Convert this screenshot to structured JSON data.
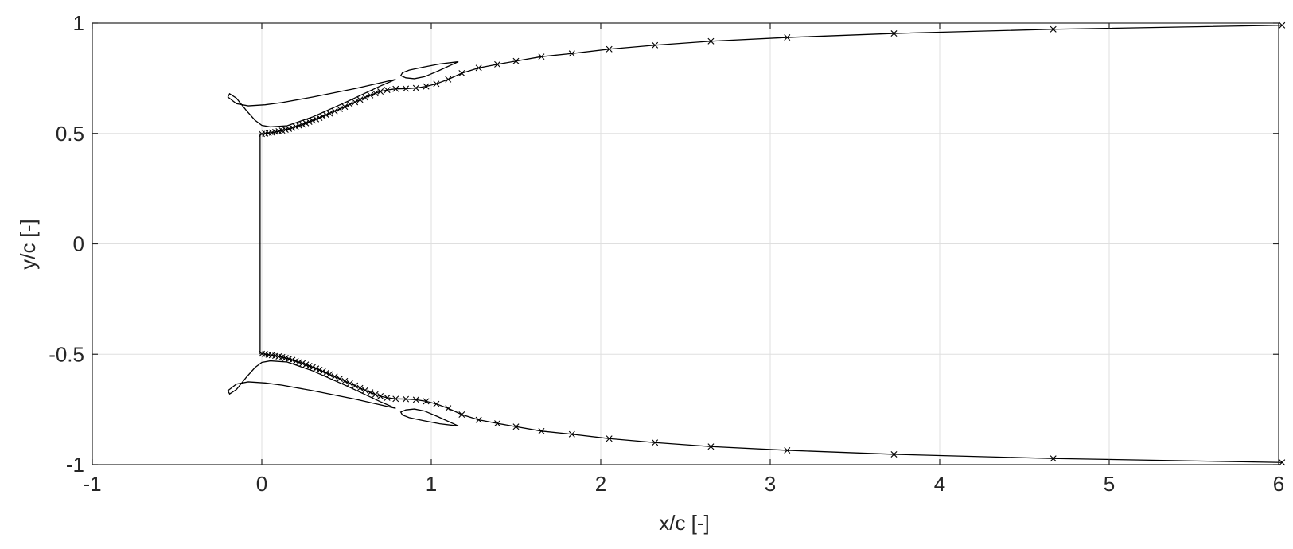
{
  "chart_data": {
    "type": "line",
    "title": "",
    "xlabel": "x/c [-]",
    "ylabel": "y/c [-]",
    "xlim": [
      -1,
      6
    ],
    "ylim": [
      -1,
      1
    ],
    "xticks": [
      -1,
      0,
      1,
      2,
      3,
      4,
      5,
      6
    ],
    "yticks": [
      -1,
      -0.5,
      0,
      0.5,
      1
    ],
    "xtick_labels": [
      "-1",
      "0",
      "1",
      "2",
      "3",
      "4",
      "5",
      "6"
    ],
    "ytick_labels": [
      "-1",
      "-0.5",
      "0",
      "0.5",
      "1"
    ],
    "grid": true,
    "line_color": "#000000",
    "series": [
      {
        "id": "upper-airfoil",
        "marker": "none",
        "closed": true,
        "points": [
          [
            0.79,
            0.745
          ],
          [
            0.55,
            0.703
          ],
          [
            0.3,
            0.665
          ],
          [
            0.12,
            0.64
          ],
          [
            0.02,
            0.63
          ],
          [
            -0.08,
            0.625
          ],
          [
            -0.15,
            0.635
          ],
          [
            -0.2,
            0.665
          ],
          [
            -0.19,
            0.68
          ],
          [
            -0.15,
            0.66
          ],
          [
            -0.09,
            0.603
          ],
          [
            -0.04,
            0.56
          ],
          [
            0.0,
            0.537
          ],
          [
            0.05,
            0.53
          ],
          [
            0.15,
            0.535
          ],
          [
            0.3,
            0.575
          ],
          [
            0.5,
            0.643
          ],
          [
            0.7,
            0.715
          ],
          [
            0.79,
            0.745
          ]
        ]
      },
      {
        "id": "upper-flap",
        "marker": "none",
        "closed": true,
        "points": [
          [
            1.16,
            0.825
          ],
          [
            1.05,
            0.815
          ],
          [
            0.95,
            0.8
          ],
          [
            0.87,
            0.787
          ],
          [
            0.83,
            0.775
          ],
          [
            0.82,
            0.762
          ],
          [
            0.85,
            0.752
          ],
          [
            0.9,
            0.748
          ],
          [
            0.96,
            0.757
          ],
          [
            1.04,
            0.783
          ],
          [
            1.16,
            0.825
          ]
        ]
      },
      {
        "id": "lower-airfoil",
        "marker": "none",
        "closed": true,
        "points": [
          [
            0.79,
            -0.745
          ],
          [
            0.55,
            -0.703
          ],
          [
            0.3,
            -0.665
          ],
          [
            0.12,
            -0.64
          ],
          [
            0.02,
            -0.63
          ],
          [
            -0.08,
            -0.625
          ],
          [
            -0.15,
            -0.635
          ],
          [
            -0.2,
            -0.665
          ],
          [
            -0.19,
            -0.68
          ],
          [
            -0.15,
            -0.66
          ],
          [
            -0.09,
            -0.603
          ],
          [
            -0.04,
            -0.56
          ],
          [
            0.0,
            -0.537
          ],
          [
            0.05,
            -0.53
          ],
          [
            0.15,
            -0.535
          ],
          [
            0.3,
            -0.575
          ],
          [
            0.5,
            -0.643
          ],
          [
            0.7,
            -0.715
          ],
          [
            0.79,
            -0.745
          ]
        ]
      },
      {
        "id": "lower-flap",
        "marker": "none",
        "closed": true,
        "points": [
          [
            1.16,
            -0.825
          ],
          [
            1.05,
            -0.815
          ],
          [
            0.95,
            -0.8
          ],
          [
            0.87,
            -0.787
          ],
          [
            0.83,
            -0.775
          ],
          [
            0.82,
            -0.762
          ],
          [
            0.85,
            -0.752
          ],
          [
            0.9,
            -0.748
          ],
          [
            0.96,
            -0.757
          ],
          [
            1.04,
            -0.783
          ],
          [
            1.16,
            -0.825
          ]
        ]
      },
      {
        "id": "inlet-boundary",
        "marker": "none",
        "closed": false,
        "points": [
          [
            -0.01,
            0.5
          ],
          [
            -0.01,
            -0.5
          ]
        ]
      },
      {
        "id": "upper-wake",
        "marker": "x",
        "closed": false,
        "points": [
          [
            0.0,
            0.498
          ],
          [
            0.02,
            0.5
          ],
          [
            0.04,
            0.502
          ],
          [
            0.06,
            0.504
          ],
          [
            0.08,
            0.507
          ],
          [
            0.1,
            0.51
          ],
          [
            0.12,
            0.513
          ],
          [
            0.14,
            0.517
          ],
          [
            0.16,
            0.521
          ],
          [
            0.18,
            0.526
          ],
          [
            0.2,
            0.531
          ],
          [
            0.22,
            0.536
          ],
          [
            0.24,
            0.541
          ],
          [
            0.26,
            0.547
          ],
          [
            0.28,
            0.553
          ],
          [
            0.3,
            0.559
          ],
          [
            0.32,
            0.565
          ],
          [
            0.34,
            0.571
          ],
          [
            0.36,
            0.578
          ],
          [
            0.38,
            0.584
          ],
          [
            0.4,
            0.591
          ],
          [
            0.43,
            0.601
          ],
          [
            0.46,
            0.611
          ],
          [
            0.49,
            0.621
          ],
          [
            0.52,
            0.632
          ],
          [
            0.55,
            0.642
          ],
          [
            0.58,
            0.653
          ],
          [
            0.61,
            0.663
          ],
          [
            0.64,
            0.673
          ],
          [
            0.67,
            0.682
          ],
          [
            0.7,
            0.69
          ],
          [
            0.74,
            0.697
          ],
          [
            0.79,
            0.702
          ],
          [
            0.85,
            0.703
          ],
          [
            0.91,
            0.706
          ],
          [
            0.97,
            0.713
          ],
          [
            1.03,
            0.725
          ],
          [
            1.1,
            0.745
          ],
          [
            1.18,
            0.773
          ],
          [
            1.28,
            0.797
          ],
          [
            1.39,
            0.813
          ],
          [
            1.5,
            0.828
          ],
          [
            1.65,
            0.848
          ],
          [
            1.83,
            0.862
          ],
          [
            2.05,
            0.882
          ],
          [
            2.32,
            0.9
          ],
          [
            2.65,
            0.918
          ],
          [
            3.1,
            0.935
          ],
          [
            3.73,
            0.953
          ],
          [
            4.67,
            0.972
          ],
          [
            6.02,
            0.99
          ]
        ]
      },
      {
        "id": "lower-wake",
        "marker": "x",
        "closed": false,
        "points": [
          [
            0.0,
            -0.498
          ],
          [
            0.02,
            -0.5
          ],
          [
            0.04,
            -0.502
          ],
          [
            0.06,
            -0.504
          ],
          [
            0.08,
            -0.507
          ],
          [
            0.1,
            -0.51
          ],
          [
            0.12,
            -0.513
          ],
          [
            0.14,
            -0.517
          ],
          [
            0.16,
            -0.521
          ],
          [
            0.18,
            -0.526
          ],
          [
            0.2,
            -0.531
          ],
          [
            0.22,
            -0.536
          ],
          [
            0.24,
            -0.541
          ],
          [
            0.26,
            -0.547
          ],
          [
            0.28,
            -0.553
          ],
          [
            0.3,
            -0.559
          ],
          [
            0.32,
            -0.565
          ],
          [
            0.34,
            -0.571
          ],
          [
            0.36,
            -0.578
          ],
          [
            0.38,
            -0.584
          ],
          [
            0.4,
            -0.591
          ],
          [
            0.43,
            -0.601
          ],
          [
            0.46,
            -0.611
          ],
          [
            0.49,
            -0.621
          ],
          [
            0.52,
            -0.632
          ],
          [
            0.55,
            -0.642
          ],
          [
            0.58,
            -0.653
          ],
          [
            0.61,
            -0.663
          ],
          [
            0.64,
            -0.673
          ],
          [
            0.67,
            -0.682
          ],
          [
            0.7,
            -0.69
          ],
          [
            0.74,
            -0.697
          ],
          [
            0.79,
            -0.702
          ],
          [
            0.85,
            -0.703
          ],
          [
            0.91,
            -0.706
          ],
          [
            0.97,
            -0.713
          ],
          [
            1.03,
            -0.725
          ],
          [
            1.1,
            -0.745
          ],
          [
            1.18,
            -0.773
          ],
          [
            1.28,
            -0.797
          ],
          [
            1.39,
            -0.813
          ],
          [
            1.5,
            -0.828
          ],
          [
            1.65,
            -0.848
          ],
          [
            1.83,
            -0.862
          ],
          [
            2.05,
            -0.882
          ],
          [
            2.32,
            -0.9
          ],
          [
            2.65,
            -0.918
          ],
          [
            3.1,
            -0.935
          ],
          [
            3.73,
            -0.953
          ],
          [
            4.67,
            -0.972
          ],
          [
            6.02,
            -0.99
          ]
        ]
      }
    ]
  }
}
